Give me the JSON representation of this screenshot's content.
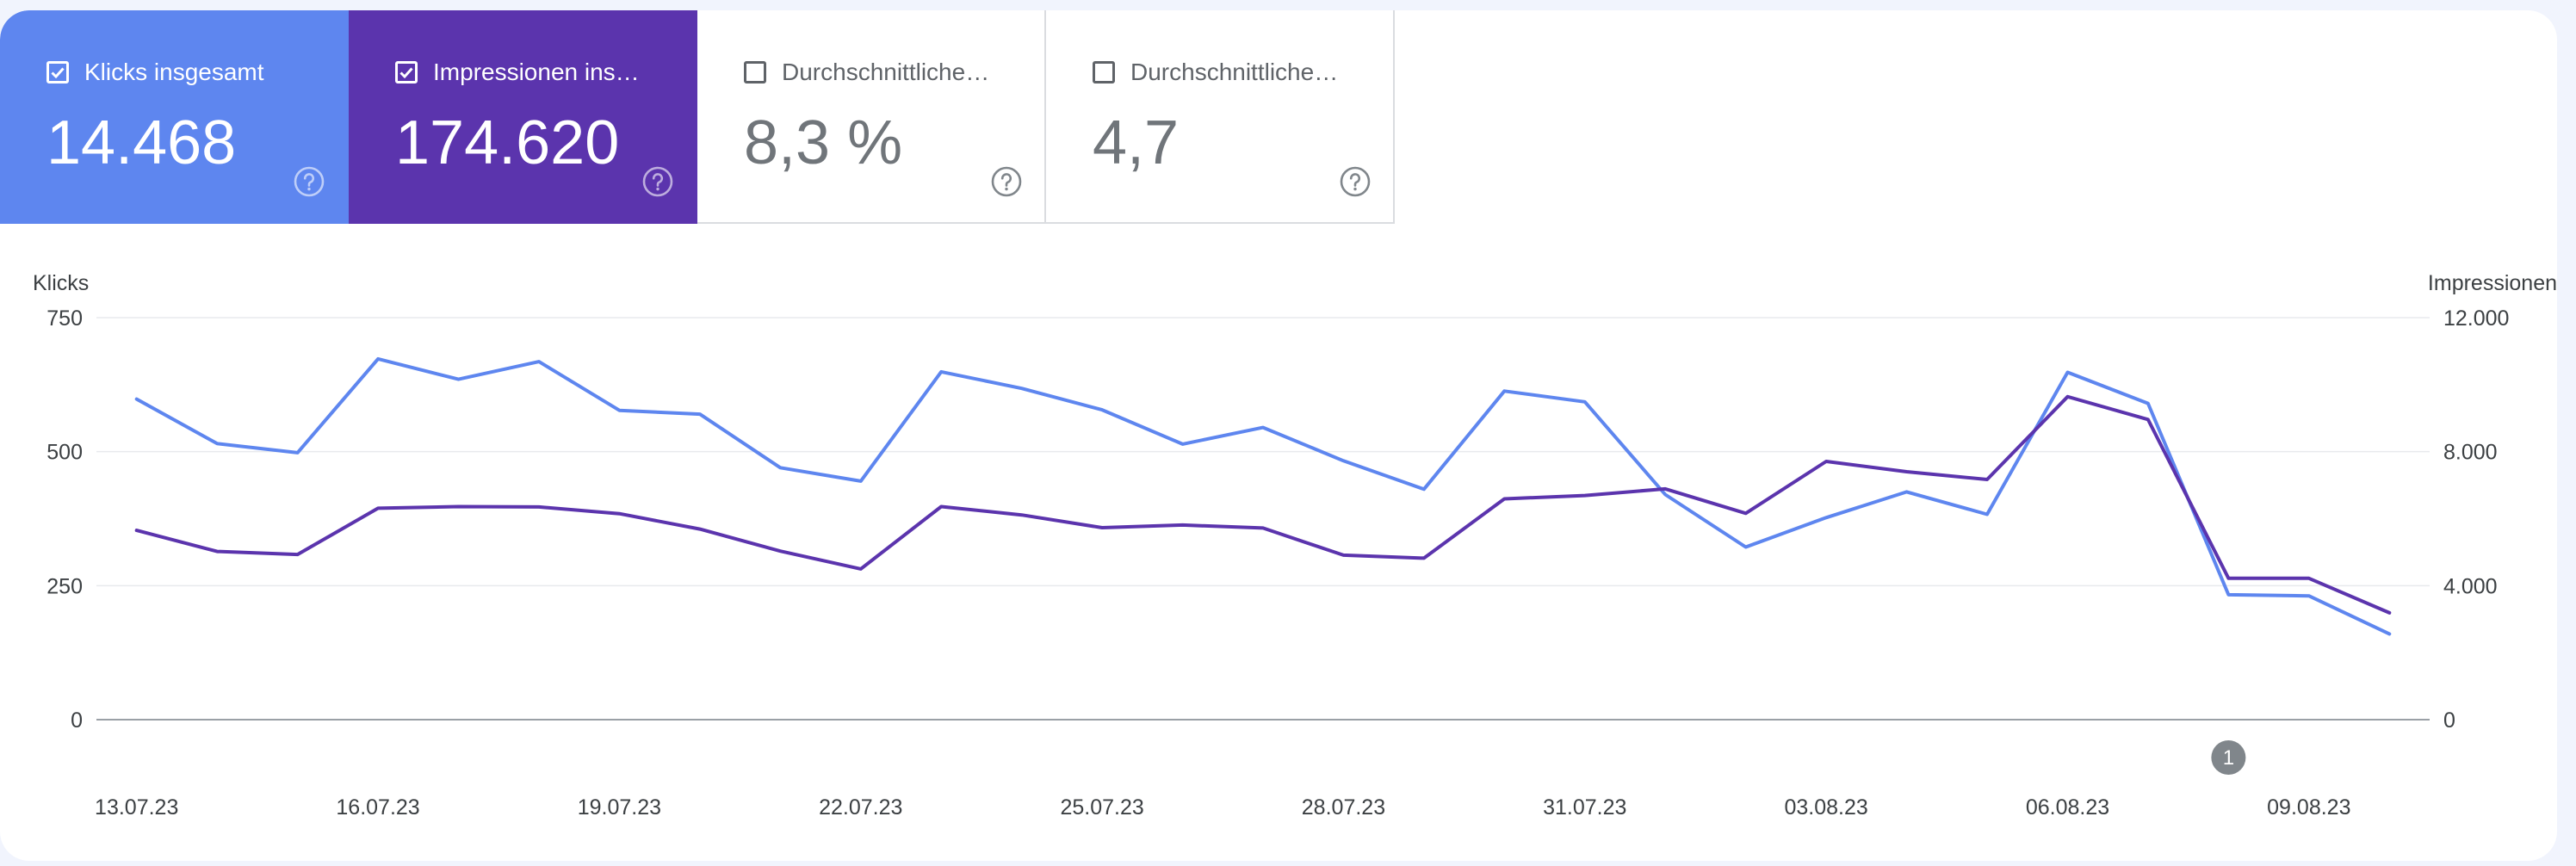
{
  "tiles": [
    {
      "label": "Klicks insgesamt",
      "value": "14.468",
      "checked": true,
      "style": "clicks",
      "color": "#5e86ef"
    },
    {
      "label": "Impressionen ins…",
      "value": "174.620",
      "checked": true,
      "style": "impr",
      "color": "#5b34ad"
    },
    {
      "label": "Durchschnittliche…",
      "value": "8,3 %",
      "checked": false,
      "style": "plain"
    },
    {
      "label": "Durchschnittliche…",
      "value": "4,7",
      "checked": false,
      "style": "plain"
    }
  ],
  "chart_data": {
    "type": "line",
    "y_left_label": "Klicks",
    "y_right_label": "Impressionen",
    "y_left_range": [
      0,
      750
    ],
    "y_right_range": [
      0,
      12000
    ],
    "y_left_ticks": [
      "0",
      "250",
      "500",
      "750"
    ],
    "y_right_ticks": [
      "0",
      "4.000",
      "8.000",
      "12.000"
    ],
    "x_labels": [
      "13.07.23",
      "16.07.23",
      "19.07.23",
      "22.07.23",
      "25.07.23",
      "28.07.23",
      "31.07.23",
      "03.08.23",
      "06.08.23",
      "09.08.23"
    ],
    "grid": true,
    "series": [
      {
        "name": "Klicks",
        "axis": "left",
        "color": "#5e86ef",
        "values": [
          598,
          515,
          498,
          673,
          635,
          668,
          577,
          570,
          470,
          445,
          649,
          618,
          578,
          514,
          545,
          483,
          430,
          613,
          593,
          420,
          322,
          377,
          425,
          383,
          648,
          590,
          233,
          231,
          160
        ]
      },
      {
        "name": "Impressionen",
        "axis": "right",
        "color": "#5b34ad",
        "values": [
          5650,
          5020,
          4930,
          6310,
          6360,
          6350,
          6150,
          5690,
          5030,
          4500,
          6360,
          6110,
          5730,
          5810,
          5720,
          4910,
          4820,
          6590,
          6690,
          6890,
          6160,
          7710,
          7400,
          7170,
          9640,
          8960,
          4220,
          4220,
          3190
        ]
      }
    ],
    "annotations": [
      {
        "label": "1",
        "x_index": 26
      }
    ]
  }
}
